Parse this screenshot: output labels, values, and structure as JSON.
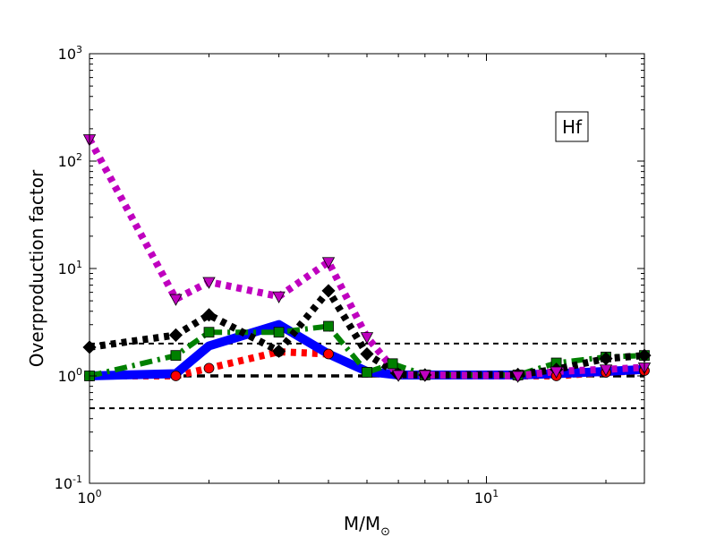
{
  "chart_data": {
    "type": "line",
    "title": "",
    "xlabel": "M/M",
    "xlabel_sub": "⊙",
    "ylabel": "Overproduction factor",
    "xscale": "log",
    "yscale": "log",
    "xlim": [
      1,
      25
    ],
    "ylim": [
      0.1,
      1000
    ],
    "x_ticks": [
      {
        "value": 1,
        "base": "10",
        "exp": "0"
      },
      {
        "value": 10,
        "base": "10",
        "exp": "1"
      }
    ],
    "y_ticks": [
      {
        "value": 0.1,
        "base": "10",
        "exp": "-1"
      },
      {
        "value": 1,
        "base": "10",
        "exp": "0"
      },
      {
        "value": 10,
        "base": "10",
        "exp": "1"
      },
      {
        "value": 100,
        "base": "10",
        "exp": "2"
      },
      {
        "value": 1000,
        "base": "10",
        "exp": "3"
      }
    ],
    "annotation": "Hf",
    "reference_lines": [
      {
        "y": 2.0,
        "color": "#000000",
        "style": "dashed"
      },
      {
        "y": 1.0,
        "color": "#000000",
        "style": "dashed-thick"
      },
      {
        "y": 0.5,
        "color": "#000000",
        "style": "dashed"
      }
    ],
    "grid": false,
    "series": [
      {
        "color": "#ff0000",
        "style": "dotted-thick",
        "marker": "circle",
        "x": [
          1.0,
          1.65,
          2.0,
          3.0,
          4.0,
          5.0,
          6.0,
          7.0,
          12.0,
          15.0,
          20.0,
          25.0
        ],
        "y": [
          1.0,
          1.0,
          1.18,
          1.68,
          1.6,
          1.08,
          1.04,
          1.02,
          1.0,
          1.0,
          1.08,
          1.12
        ]
      },
      {
        "color": "#0000ff",
        "style": "solid-thick",
        "marker": "none",
        "x": [
          1.0,
          1.65,
          2.0,
          3.0,
          4.0,
          5.0,
          6.0,
          7.0,
          12.0,
          15.0,
          20.0,
          25.0
        ],
        "y": [
          1.0,
          1.05,
          1.9,
          3.0,
          1.6,
          1.1,
          1.02,
          1.02,
          1.02,
          1.05,
          1.1,
          1.15
        ]
      },
      {
        "color": "#008000",
        "style": "dashdot-thick",
        "marker": "square",
        "x": [
          1.0,
          1.65,
          2.0,
          3.0,
          4.0,
          5.0,
          5.8,
          7.0,
          12.0,
          15.0,
          20.0,
          25.0
        ],
        "y": [
          1.0,
          1.55,
          2.55,
          2.55,
          2.9,
          1.08,
          1.3,
          1.02,
          1.02,
          1.32,
          1.5,
          1.55
        ]
      },
      {
        "color": "#000000",
        "style": "dotted-thick",
        "marker": "diamond",
        "x": [
          1.0,
          1.65,
          2.0,
          3.0,
          4.0,
          5.0,
          6.0,
          7.0,
          12.0,
          15.0,
          20.0,
          25.0
        ],
        "y": [
          1.85,
          2.4,
          3.7,
          1.7,
          6.2,
          1.6,
          1.03,
          1.02,
          1.03,
          1.15,
          1.45,
          1.55
        ]
      },
      {
        "color": "#bf00bf",
        "style": "dotted-thick",
        "marker": "triangle-down",
        "x": [
          1.0,
          1.65,
          2.0,
          3.0,
          4.0,
          5.0,
          6.0,
          7.0,
          12.0,
          15.0,
          20.0,
          25.0
        ],
        "y": [
          160,
          5.2,
          7.5,
          5.5,
          11.5,
          2.3,
          1.02,
          1.02,
          1.0,
          1.1,
          1.15,
          1.2
        ]
      }
    ]
  }
}
